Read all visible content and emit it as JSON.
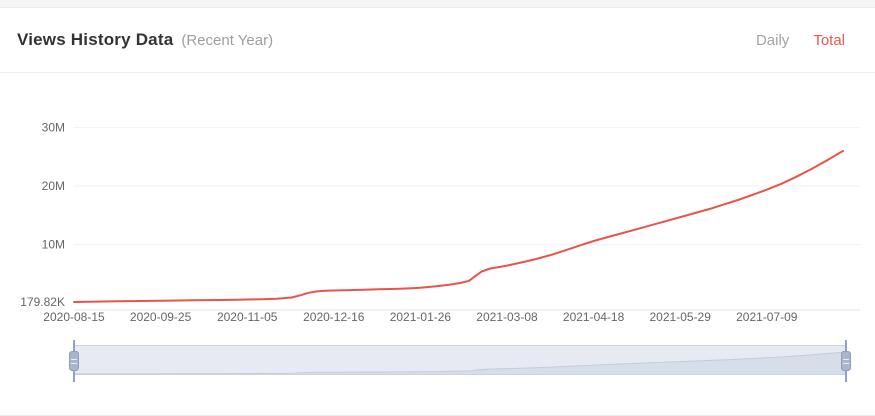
{
  "header": {
    "title": "Views History Data",
    "subtitle": "(Recent Year)",
    "toggles": [
      {
        "label": "Daily",
        "active": false
      },
      {
        "label": "Total",
        "active": true
      }
    ]
  },
  "colors": {
    "accent_red": "#e8544a",
    "inactive_gray": "#a3a3a3",
    "grid_gray": "#f0f2f4",
    "slider_track": "#e7eaf2",
    "slider_preview_fill": "#d7dde9",
    "slider_handle": "#a9b5cc"
  },
  "chart_data": {
    "type": "line",
    "title": "Views History Data (Recent Year)",
    "xlabel": "",
    "ylabel": "",
    "unit": "millions of views",
    "grid": true,
    "legend_position": "none",
    "x_range": [
      "2020-08-15",
      "2021-08-14"
    ],
    "ylim": [
      0.17982,
      33
    ],
    "x_ticks": [
      "2020-08-15",
      "2020-09-25",
      "2020-11-05",
      "2020-12-16",
      "2021-01-26",
      "2021-03-08",
      "2021-04-18",
      "2021-05-29",
      "2021-07-09"
    ],
    "y_ticks": [
      {
        "label": "30M",
        "value": 30
      },
      {
        "label": "20M",
        "value": 20
      },
      {
        "label": "10M",
        "value": 10
      },
      {
        "label": "179.82K",
        "value": 0.17982
      }
    ],
    "series": [
      {
        "name": "Total Views",
        "color": "#e8544a",
        "points": [
          [
            "2020-08-15",
            0.18
          ],
          [
            "2020-08-22",
            0.22
          ],
          [
            "2020-08-29",
            0.26
          ],
          [
            "2020-09-05",
            0.3
          ],
          [
            "2020-09-12",
            0.34
          ],
          [
            "2020-09-19",
            0.37
          ],
          [
            "2020-09-25",
            0.4
          ],
          [
            "2020-10-03",
            0.44
          ],
          [
            "2020-10-10",
            0.47
          ],
          [
            "2020-10-17",
            0.5
          ],
          [
            "2020-10-24",
            0.53
          ],
          [
            "2020-10-31",
            0.56
          ],
          [
            "2020-11-05",
            0.6
          ],
          [
            "2020-11-12",
            0.66
          ],
          [
            "2020-11-19",
            0.74
          ],
          [
            "2020-11-26",
            0.95
          ],
          [
            "2020-11-30",
            1.3
          ],
          [
            "2020-12-04",
            1.75
          ],
          [
            "2020-12-08",
            2.0
          ],
          [
            "2020-12-12",
            2.1
          ],
          [
            "2020-12-16",
            2.15
          ],
          [
            "2020-12-24",
            2.22
          ],
          [
            "2021-01-01",
            2.3
          ],
          [
            "2021-01-09",
            2.38
          ],
          [
            "2021-01-16",
            2.45
          ],
          [
            "2021-01-23",
            2.55
          ],
          [
            "2021-01-26",
            2.62
          ],
          [
            "2021-02-02",
            2.85
          ],
          [
            "2021-02-09",
            3.15
          ],
          [
            "2021-02-14",
            3.45
          ],
          [
            "2021-02-18",
            3.8
          ],
          [
            "2021-02-21",
            4.6
          ],
          [
            "2021-02-24",
            5.4
          ],
          [
            "2021-02-28",
            5.9
          ],
          [
            "2021-03-04",
            6.15
          ],
          [
            "2021-03-08",
            6.4
          ],
          [
            "2021-03-15",
            6.95
          ],
          [
            "2021-03-22",
            7.55
          ],
          [
            "2021-03-29",
            8.25
          ],
          [
            "2021-04-05",
            9.05
          ],
          [
            "2021-04-12",
            9.9
          ],
          [
            "2021-04-18",
            10.6
          ],
          [
            "2021-04-25",
            11.3
          ],
          [
            "2021-05-02",
            12.0
          ],
          [
            "2021-05-09",
            12.7
          ],
          [
            "2021-05-16",
            13.4
          ],
          [
            "2021-05-23",
            14.1
          ],
          [
            "2021-05-29",
            14.7
          ],
          [
            "2021-06-05",
            15.4
          ],
          [
            "2021-06-12",
            16.1
          ],
          [
            "2021-06-19",
            16.9
          ],
          [
            "2021-06-26",
            17.7
          ],
          [
            "2021-07-03",
            18.6
          ],
          [
            "2021-07-09",
            19.4
          ],
          [
            "2021-07-16",
            20.4
          ],
          [
            "2021-07-23",
            21.6
          ],
          [
            "2021-07-30",
            22.9
          ],
          [
            "2021-08-06",
            24.3
          ],
          [
            "2021-08-13",
            25.8
          ],
          [
            "2021-08-14",
            26.0
          ]
        ]
      }
    ]
  }
}
